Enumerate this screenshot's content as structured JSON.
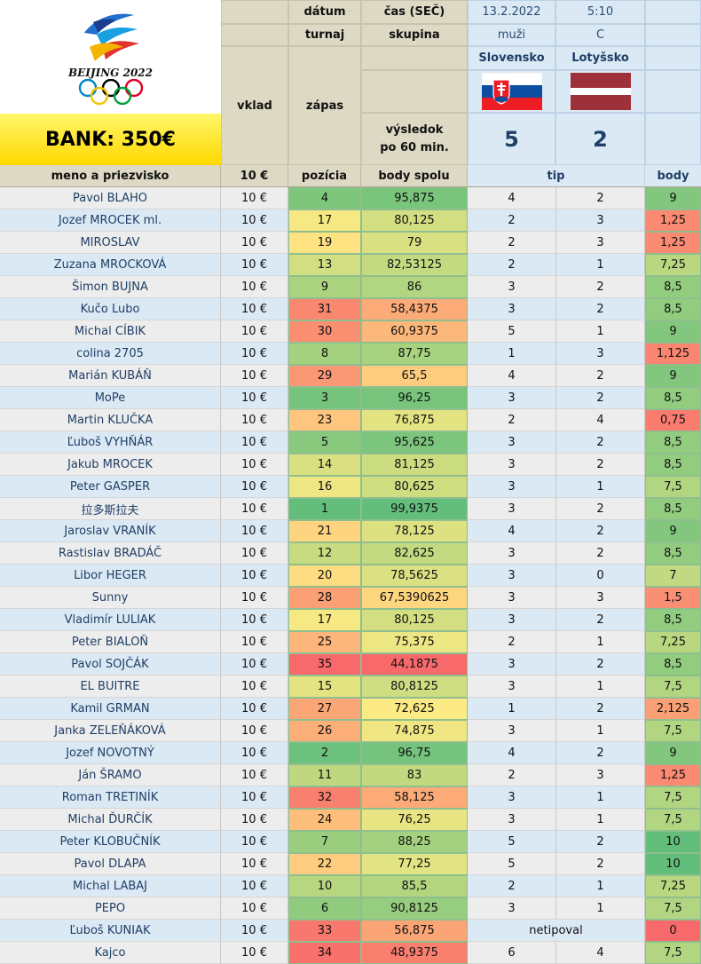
{
  "bank": "BANK: 350€",
  "logo_text": "BEIJING 2022",
  "header": {
    "datum_label": "dátum",
    "datum_value": "13.2.2022",
    "cas_label": "čas (SEČ)",
    "cas_value": "5:10",
    "turnaj_label": "turnaj",
    "turnaj_value": "muži",
    "skupina_label": "skupina",
    "skupina_value": "C",
    "vklad_label": "vklad",
    "zapas_label": "zápas",
    "vysledok_label": "výsledok",
    "vysledok_label2": "po 60 min.",
    "team1": "Slovensko",
    "team2": "Lotyšsko",
    "score1": "5",
    "score2": "2"
  },
  "columns": {
    "meno": "meno a priezvisko",
    "vklad": "10 €",
    "pozicia": "pozícia",
    "body_spolu": "body spolu",
    "tip": "tip",
    "body": "body"
  },
  "colors": {
    "header_tan": "#ddd9c4",
    "light_blue": "#dbe9f4",
    "bank_yellow": "#ffe600",
    "green_best": "#63be7b",
    "yellow_mid": "#ffeb84",
    "red_worst": "#f8696b"
  },
  "rows": [
    {
      "name": "Pavol BLAHO",
      "vklad": "10 €",
      "pos": "4",
      "total": "95,875",
      "tip1": "4",
      "tip2": "2",
      "body": "9"
    },
    {
      "name": "Jozef MROCEK ml.",
      "vklad": "10 €",
      "pos": "17",
      "total": "80,125",
      "tip1": "2",
      "tip2": "3",
      "body": "1,25"
    },
    {
      "name": "MIROSLAV",
      "vklad": "10 €",
      "pos": "19",
      "total": "79",
      "tip1": "2",
      "tip2": "3",
      "body": "1,25"
    },
    {
      "name": "Zuzana MROCKOVÁ",
      "vklad": "10 €",
      "pos": "13",
      "total": "82,53125",
      "tip1": "2",
      "tip2": "1",
      "body": "7,25"
    },
    {
      "name": "Šimon BUJNA",
      "vklad": "10 €",
      "pos": "9",
      "total": "86",
      "tip1": "3",
      "tip2": "2",
      "body": "8,5"
    },
    {
      "name": "Kučo Lubo",
      "vklad": "10 €",
      "pos": "31",
      "total": "58,4375",
      "tip1": "3",
      "tip2": "2",
      "body": "8,5"
    },
    {
      "name": "Michal CÍBIK",
      "vklad": "10 €",
      "pos": "30",
      "total": "60,9375",
      "tip1": "5",
      "tip2": "1",
      "body": "9"
    },
    {
      "name": "colina 2705",
      "vklad": "10 €",
      "pos": "8",
      "total": "87,75",
      "tip1": "1",
      "tip2": "3",
      "body": "1,125"
    },
    {
      "name": "Marián KUBÁŇ",
      "vklad": "10 €",
      "pos": "29",
      "total": "65,5",
      "tip1": "4",
      "tip2": "2",
      "body": "9"
    },
    {
      "name": "MoPe",
      "vklad": "10 €",
      "pos": "3",
      "total": "96,25",
      "tip1": "3",
      "tip2": "2",
      "body": "8,5"
    },
    {
      "name": "Martin KLUČKA",
      "vklad": "10 €",
      "pos": "23",
      "total": "76,875",
      "tip1": "2",
      "tip2": "4",
      "body": "0,75"
    },
    {
      "name": "Ľuboš VYHŇÁR",
      "vklad": "10 €",
      "pos": "5",
      "total": "95,625",
      "tip1": "3",
      "tip2": "2",
      "body": "8,5"
    },
    {
      "name": "Jakub MROCEK",
      "vklad": "10 €",
      "pos": "14",
      "total": "81,125",
      "tip1": "3",
      "tip2": "2",
      "body": "8,5"
    },
    {
      "name": "Peter GASPER",
      "vklad": "10 €",
      "pos": "16",
      "total": "80,625",
      "tip1": "3",
      "tip2": "1",
      "body": "7,5"
    },
    {
      "name": "拉多斯拉夫",
      "vklad": "10 €",
      "pos": "1",
      "total": "99,9375",
      "tip1": "3",
      "tip2": "2",
      "body": "8,5"
    },
    {
      "name": "Jaroslav VRANÍK",
      "vklad": "10 €",
      "pos": "21",
      "total": "78,125",
      "tip1": "4",
      "tip2": "2",
      "body": "9"
    },
    {
      "name": "Rastislav BRADÁČ",
      "vklad": "10 €",
      "pos": "12",
      "total": "82,625",
      "tip1": "3",
      "tip2": "2",
      "body": "8,5"
    },
    {
      "name": "Libor HEGER",
      "vklad": "10 €",
      "pos": "20",
      "total": "78,5625",
      "tip1": "3",
      "tip2": "0",
      "body": "7"
    },
    {
      "name": "Sunny",
      "vklad": "10 €",
      "pos": "28",
      "total": "67,5390625",
      "tip1": "3",
      "tip2": "3",
      "body": "1,5"
    },
    {
      "name": "Vladimír LULIAK",
      "vklad": "10 €",
      "pos": "17",
      "total": "80,125",
      "tip1": "3",
      "tip2": "2",
      "body": "8,5"
    },
    {
      "name": "Peter BIALOŇ",
      "vklad": "10 €",
      "pos": "25",
      "total": "75,375",
      "tip1": "2",
      "tip2": "1",
      "body": "7,25"
    },
    {
      "name": "Pavol SOJČÁK",
      "vklad": "10 €",
      "pos": "35",
      "total": "44,1875",
      "tip1": "3",
      "tip2": "2",
      "body": "8,5"
    },
    {
      "name": "EL BUITRE",
      "vklad": "10 €",
      "pos": "15",
      "total": "80,8125",
      "tip1": "3",
      "tip2": "1",
      "body": "7,5"
    },
    {
      "name": "Kamil GRMAN",
      "vklad": "10 €",
      "pos": "27",
      "total": "72,625",
      "tip1": "1",
      "tip2": "2",
      "body": "2,125"
    },
    {
      "name": "Janka ZELEŇÁKOVÁ",
      "vklad": "10 €",
      "pos": "26",
      "total": "74,875",
      "tip1": "3",
      "tip2": "1",
      "body": "7,5"
    },
    {
      "name": "Jozef NOVOTNÝ",
      "vklad": "10 €",
      "pos": "2",
      "total": "96,75",
      "tip1": "4",
      "tip2": "2",
      "body": "9"
    },
    {
      "name": "Ján ŠRAMO",
      "vklad": "10 €",
      "pos": "11",
      "total": "83",
      "tip1": "2",
      "tip2": "3",
      "body": "1,25"
    },
    {
      "name": "Roman TRETINÍK",
      "vklad": "10 €",
      "pos": "32",
      "total": "58,125",
      "tip1": "3",
      "tip2": "1",
      "body": "7,5"
    },
    {
      "name": "Michal ĎURČÍK",
      "vklad": "10 €",
      "pos": "24",
      "total": "76,25",
      "tip1": "3",
      "tip2": "1",
      "body": "7,5"
    },
    {
      "name": "Peter KLOBUČNÍK",
      "vklad": "10 €",
      "pos": "7",
      "total": "88,25",
      "tip1": "5",
      "tip2": "2",
      "body": "10"
    },
    {
      "name": "Pavol DLAPA",
      "vklad": "10 €",
      "pos": "22",
      "total": "77,25",
      "tip1": "5",
      "tip2": "2",
      "body": "10"
    },
    {
      "name": "Michal LABAJ",
      "vklad": "10 €",
      "pos": "10",
      "total": "85,5",
      "tip1": "2",
      "tip2": "1",
      "body": "7,25"
    },
    {
      "name": "PEPO",
      "vklad": "10 €",
      "pos": "6",
      "total": "90,8125",
      "tip1": "3",
      "tip2": "1",
      "body": "7,5"
    },
    {
      "name": "Ľuboš KUNIAK",
      "vklad": "10 €",
      "pos": "33",
      "total": "56,875",
      "tip_text": "netipoval",
      "body": "0"
    },
    {
      "name": "Kajco",
      "vklad": "10 €",
      "pos": "34",
      "total": "48,9375",
      "tip1": "6",
      "tip2": "4",
      "body": "7,5"
    }
  ]
}
